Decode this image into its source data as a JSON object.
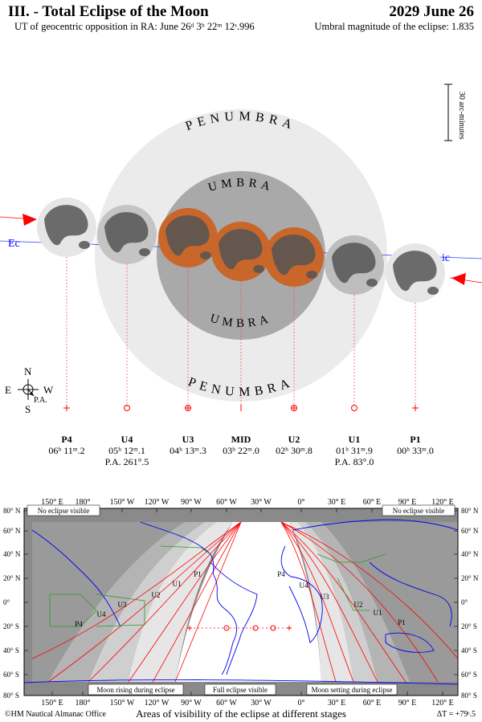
{
  "header": {
    "title": "III. - Total Eclipse of the Moon",
    "date": "2029 June 26",
    "subtitle": "UT of geocentric opposition in RA: June 26ᵈ 3ʰ 22ᵐ 12ˢ.996",
    "magnitude": "Umbral magnitude of the eclipse: 1.835"
  },
  "scale_bar": {
    "label": "30 arc-minutes"
  },
  "diagram": {
    "penumbra_label": "PENUMBRA",
    "umbra_label": "UMBRA",
    "ecliptic_label": "Ecliptic",
    "compass": {
      "north": "N",
      "south": "S",
      "east": "E",
      "west": "W",
      "pa": "P.A."
    },
    "colors": {
      "penumbra": "#ebebeb",
      "umbra": "#a9a9a9",
      "eclipsed_moon": "#c9662a",
      "moon": "#e6e6e6",
      "maria": "#555555",
      "arrow": "#ff0000",
      "ecliptic": "#0000ff"
    }
  },
  "stages": [
    {
      "name": "P4",
      "time": "06ʰ 11ᵐ.2",
      "pa": ""
    },
    {
      "name": "U4",
      "time": "05ʰ 12ᵐ.1",
      "pa": "P.A. 261°.5"
    },
    {
      "name": "U3",
      "time": "04ʰ 13ᵐ.3",
      "pa": ""
    },
    {
      "name": "MID",
      "time": "03ʰ 22ᵐ.0",
      "pa": ""
    },
    {
      "name": "U2",
      "time": "02ʰ 30ᵐ.8",
      "pa": ""
    },
    {
      "name": "U1",
      "time": "01ʰ 31ᵐ.9",
      "pa": "P.A. 83°.0"
    },
    {
      "name": "P1",
      "time": "00ʰ 33ᵐ.0",
      "pa": ""
    }
  ],
  "map": {
    "top_lon_labels": [
      "150° E",
      "180°",
      "150° W",
      "120° W",
      "90° W",
      "60° W",
      "30° W",
      "0°",
      "30° E",
      "60° E",
      "90° E",
      "120° E"
    ],
    "bottom_lon_labels": [
      "150° E",
      "180°",
      "150° W",
      "120° W",
      "90° W",
      "60° W",
      "30° W",
      "0°",
      "30° E",
      "60° E",
      "90° E",
      "120° E"
    ],
    "lat_labels": [
      "80° N",
      "60° N",
      "40° N",
      "20° N",
      "0°",
      "20° S",
      "40° S",
      "60° S",
      "80° S"
    ],
    "no_eclipse_left": "No eclipse visible",
    "no_eclipse_right": "No eclipse visible",
    "rising": "Moon rising during eclipse",
    "full": "Full eclipse visible",
    "setting": "Moon setting during eclipse",
    "curve_labels_west": [
      "P4",
      "U4",
      "U3",
      "U2",
      "U1",
      "P1"
    ],
    "curve_labels_east": [
      "P4",
      "U4",
      "U3",
      "U2",
      "U1",
      "P1"
    ]
  },
  "footer": {
    "credit": "©HM Nautical Almanac Office",
    "caption": "Areas of visibility of the eclipse at different stages",
    "delta_t": "ΔT = +79ˢ.5"
  }
}
